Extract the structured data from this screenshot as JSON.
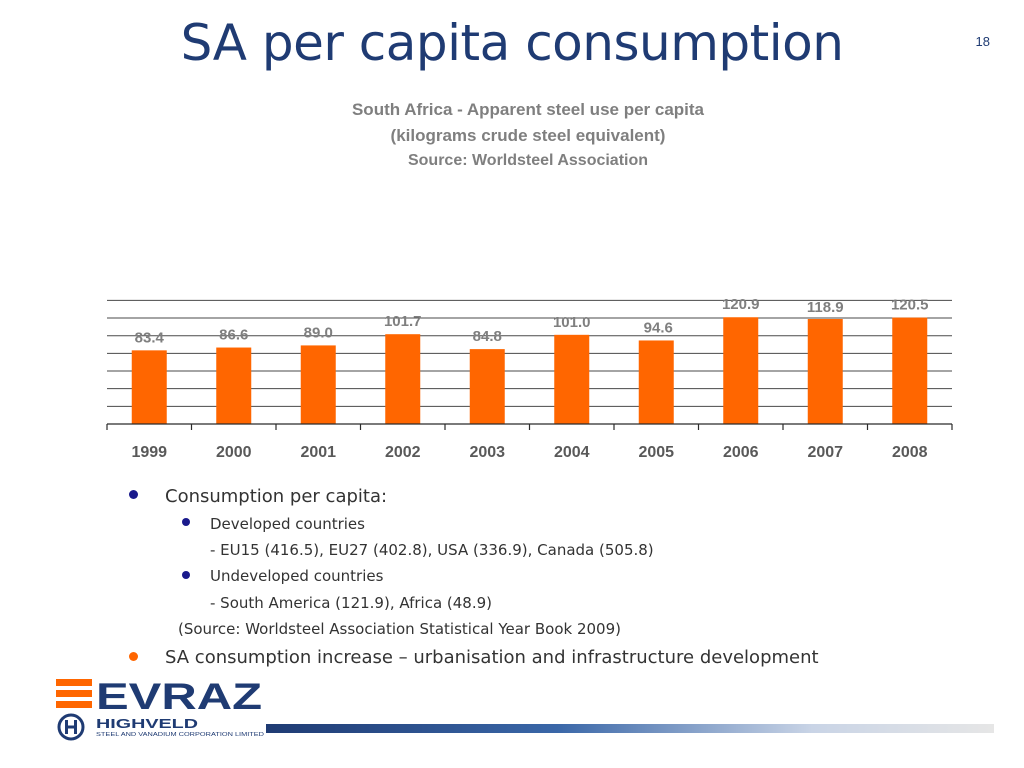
{
  "slide": {
    "title": "SA per capita consumption",
    "page_number": "18"
  },
  "chart_data": {
    "type": "bar",
    "title": "South Africa -  Apparent steel use per capita",
    "subtitle": "(kilograms crude steel equivalent)",
    "source": "Source: Worldsteel Association",
    "categories": [
      "1999",
      "2000",
      "2001",
      "2002",
      "2003",
      "2004",
      "2005",
      "2006",
      "2007",
      "2008"
    ],
    "values": [
      83.4,
      86.6,
      89.0,
      101.7,
      84.8,
      101.0,
      94.6,
      120.9,
      118.9,
      120.5
    ],
    "data_labels": [
      "83.4",
      "86.6",
      "89.0",
      "101.7",
      "84.8",
      "101.0",
      "94.6",
      "120.9",
      "118.9",
      "120.5"
    ],
    "ylim": [
      0,
      140
    ],
    "grid": true,
    "legend": "none",
    "bar_color": "#ff6600"
  },
  "bullets": {
    "b1": "Consumption per capita:",
    "b1_1": "Developed countries",
    "b1_1_detail": "-  EU15 (416.5), EU27 (402.8), USA (336.9), Canada (505.8)",
    "b1_2": "Undeveloped countries",
    "b1_2_detail": "- South America (121.9), Africa (48.9)",
    "source_note": "(Source: Worldsteel Association Statistical Year Book 2009)",
    "b2": "SA consumption increase – urbanisation and infrastructure development"
  },
  "logo": {
    "brand": "EVRAZ",
    "sub_brand": "HIGHVELD",
    "tagline": "STEEL AND VANADIUM CORPORATION LIMITED"
  },
  "colors": {
    "title": "#1f3b73",
    "bullet_primary": "#1a1a8c",
    "bullet_accent": "#ff6600",
    "footer_bar": "#1f3b73"
  }
}
